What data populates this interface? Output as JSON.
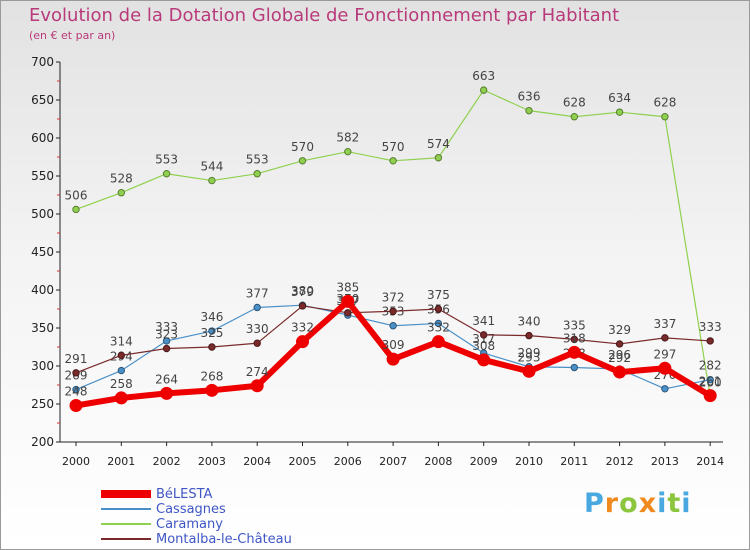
{
  "header": {
    "title": "Evolution de la Dotation Globale de Fonctionnement par Habitant",
    "subtitle": "(en € et par an)"
  },
  "brand": {
    "letters": [
      "P",
      "r",
      "o",
      "x",
      "i",
      "t",
      "i"
    ],
    "colors": [
      "#49a8e0",
      "#f08a1e",
      "#8cc63f",
      "#f08a1e",
      "#49a8e0",
      "#8cc63f",
      "#49a8e0"
    ]
  },
  "chart_data": {
    "type": "line",
    "title": "Evolution de la Dotation Globale de Fonctionnement par Habitant",
    "subtitle": "(en € et par an)",
    "xlabel": "",
    "ylabel": "",
    "ylim": [
      200,
      700
    ],
    "yticks": [
      200,
      250,
      300,
      350,
      400,
      450,
      500,
      550,
      600,
      650,
      700
    ],
    "x": [
      "2000",
      "2001",
      "2002",
      "2003",
      "2004",
      "2005",
      "2006",
      "2007",
      "2008",
      "2009",
      "2010",
      "2011",
      "2012",
      "2013",
      "2014"
    ],
    "grid": false,
    "legend_position": "bottom-left",
    "series": [
      {
        "name": "Caramany",
        "color": "#8fd14f",
        "width": 1.2,
        "values": [
          506,
          528,
          553,
          544,
          553,
          570,
          582,
          570,
          574,
          663,
          636,
          628,
          634,
          628,
          260
        ],
        "labels": [
          "506",
          "528",
          "553",
          "544",
          "553",
          "570",
          "582",
          "570",
          "574",
          "663",
          "636",
          "628",
          "634",
          "628",
          "260"
        ]
      },
      {
        "name": "Cassagnes",
        "color": "#4a90c8",
        "width": 1.2,
        "values": [
          269,
          294,
          333,
          346,
          377,
          380,
          367,
          353,
          356,
          317,
          299,
          298,
          296,
          270,
          282
        ],
        "labels": [
          "269",
          "294",
          "333",
          "346",
          "377",
          "380",
          "367",
          "353",
          "356",
          "317",
          "299",
          "298",
          "296",
          "270",
          "282"
        ]
      },
      {
        "name": "Montalba-le-Château",
        "color": "#7a2a2a",
        "width": 1.2,
        "values": [
          291,
          314,
          323,
          325,
          330,
          379,
          370,
          372,
          375,
          341,
          340,
          335,
          329,
          337,
          333
        ],
        "labels": [
          "291",
          "314",
          "323",
          "325",
          "330",
          "379",
          "370",
          "372",
          "375",
          "341",
          "340",
          "335",
          "329",
          "337",
          "333"
        ]
      },
      {
        "name": "BéLESTA",
        "color": "#ee0000",
        "width": 6,
        "values": [
          248,
          258,
          264,
          268,
          274,
          332,
          385,
          309,
          332,
          308,
          293,
          318,
          292,
          297,
          261
        ],
        "labels": [
          "248",
          "258",
          "264",
          "268",
          "274",
          "332",
          "385",
          "309",
          "332",
          "308",
          "293",
          "318",
          "292",
          "297",
          "261"
        ]
      }
    ],
    "legend": [
      {
        "name": "BéLESTA",
        "color": "#ee0000",
        "width": 8
      },
      {
        "name": "Cassagnes",
        "color": "#4a90c8",
        "width": 2
      },
      {
        "name": "Caramany",
        "color": "#8fd14f",
        "width": 2
      },
      {
        "name": "Montalba-le-Château",
        "color": "#7a2a2a",
        "width": 2
      }
    ]
  }
}
